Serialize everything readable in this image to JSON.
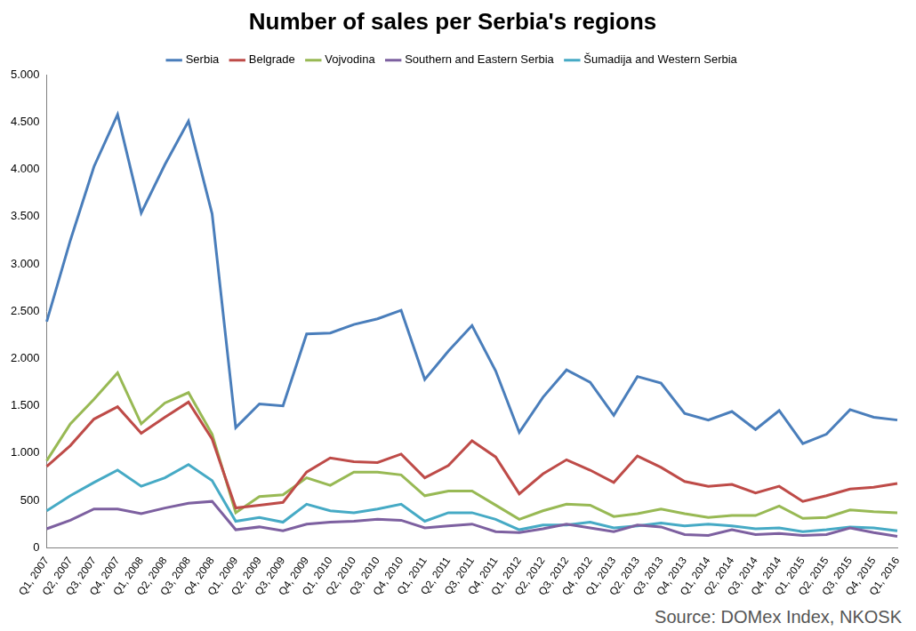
{
  "chart_data": {
    "type": "line",
    "title": "Number of sales per Serbia's regions",
    "source": "Source: DOMex Index, NKOSK",
    "categories": [
      "Q1, 2007",
      "Q2, 2007",
      "Q3, 2007",
      "Q4, 2007",
      "Q1, 2008",
      "Q2, 2008",
      "Q3, 2008",
      "Q4, 2008",
      "Q1, 2009",
      "Q2, 2009",
      "Q3, 2009",
      "Q4, 2009",
      "Q1, 2010",
      "Q2, 2010",
      "Q3, 2010",
      "Q4, 2010",
      "Q1, 2011",
      "Q2, 2011",
      "Q3, 2011",
      "Q4, 2011",
      "Q1, 2012",
      "Q2, 2012",
      "Q3, 2012",
      "Q4, 2012",
      "Q1, 2013",
      "Q2, 2013",
      "Q3, 2013",
      "Q4, 2013",
      "Q1, 2014",
      "Q2, 2014",
      "Q3, 2014",
      "Q4, 2014",
      "Q1, 2015",
      "Q2, 2015",
      "Q3, 2015",
      "Q4, 2015",
      "Q1, 2016"
    ],
    "series": [
      {
        "name": "Serbia",
        "color": "#4A7EBB",
        "values": [
          2390,
          3250,
          4030,
          4580,
          3540,
          4050,
          4510,
          3530,
          1270,
          1520,
          1500,
          2260,
          2270,
          2360,
          2420,
          2510,
          1780,
          2080,
          2350,
          1870,
          1220,
          1590,
          1880,
          1750,
          1400,
          1810,
          1740,
          1420,
          1350,
          1440,
          1250,
          1450,
          1100,
          1200,
          1460,
          1380,
          1350
        ]
      },
      {
        "name": "Belgrade",
        "color": "#BE4B48",
        "values": [
          860,
          1080,
          1360,
          1490,
          1210,
          1380,
          1540,
          1150,
          420,
          450,
          480,
          800,
          950,
          910,
          900,
          990,
          740,
          870,
          1130,
          960,
          570,
          780,
          930,
          820,
          690,
          970,
          850,
          700,
          650,
          670,
          580,
          650,
          490,
          550,
          620,
          640,
          680
        ]
      },
      {
        "name": "Vojvodina",
        "color": "#98B954",
        "values": [
          920,
          1310,
          1570,
          1850,
          1310,
          1530,
          1640,
          1200,
          370,
          540,
          560,
          740,
          660,
          800,
          800,
          770,
          550,
          600,
          600,
          450,
          300,
          390,
          460,
          450,
          330,
          360,
          410,
          360,
          320,
          340,
          340,
          440,
          310,
          320,
          400,
          380,
          370
        ]
      },
      {
        "name": "Southern and Eastern Serbia",
        "color": "#7D60A0",
        "values": [
          200,
          290,
          410,
          410,
          360,
          420,
          470,
          490,
          190,
          220,
          180,
          250,
          270,
          280,
          300,
          290,
          210,
          230,
          250,
          170,
          160,
          200,
          250,
          210,
          170,
          240,
          220,
          140,
          130,
          190,
          140,
          150,
          130,
          140,
          210,
          160,
          120
        ]
      },
      {
        "name": "Šumadija and Western Serbia",
        "color": "#46AAC5",
        "values": [
          390,
          550,
          690,
          820,
          650,
          740,
          880,
          710,
          280,
          320,
          270,
          460,
          390,
          370,
          410,
          460,
          280,
          370,
          370,
          300,
          190,
          240,
          240,
          270,
          210,
          230,
          260,
          230,
          250,
          230,
          200,
          210,
          170,
          190,
          220,
          210,
          180
        ]
      }
    ],
    "ylim": [
      0,
      5000
    ],
    "yticks": [
      0,
      500,
      {
        "value": 1000,
        "label": "1.000"
      },
      {
        "value": 1500,
        "label": "1.500"
      },
      {
        "value": 2000,
        "label": "2.000"
      },
      {
        "value": 2500,
        "label": "2.500"
      },
      {
        "value": 3000,
        "label": "3.000"
      },
      {
        "value": 3500,
        "label": "3.500"
      },
      {
        "value": 4000,
        "label": "4.000"
      },
      {
        "value": 4500,
        "label": "4.500"
      },
      {
        "value": 5000,
        "label": "5.000"
      }
    ],
    "grid": false,
    "legend": "top"
  }
}
